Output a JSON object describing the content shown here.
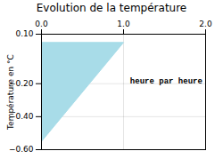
{
  "chart_data": {
    "type": "area",
    "title": "Evolution de la température",
    "ylabel": "Température en °C",
    "x": [
      0,
      1,
      0
    ],
    "values": [
      0.05,
      0.05,
      -0.55
    ],
    "color": "#a8dce8",
    "xlim": [
      0,
      2
    ],
    "xticks": [
      0,
      1,
      2
    ],
    "ylim": [
      -0.6,
      0.1
    ],
    "yticks": [
      0.1,
      -0.2,
      -0.4,
      -0.6
    ],
    "grid": true,
    "annotations": [
      {
        "text": "heure par heure",
        "x": 1.08,
        "y": -0.185
      }
    ]
  }
}
